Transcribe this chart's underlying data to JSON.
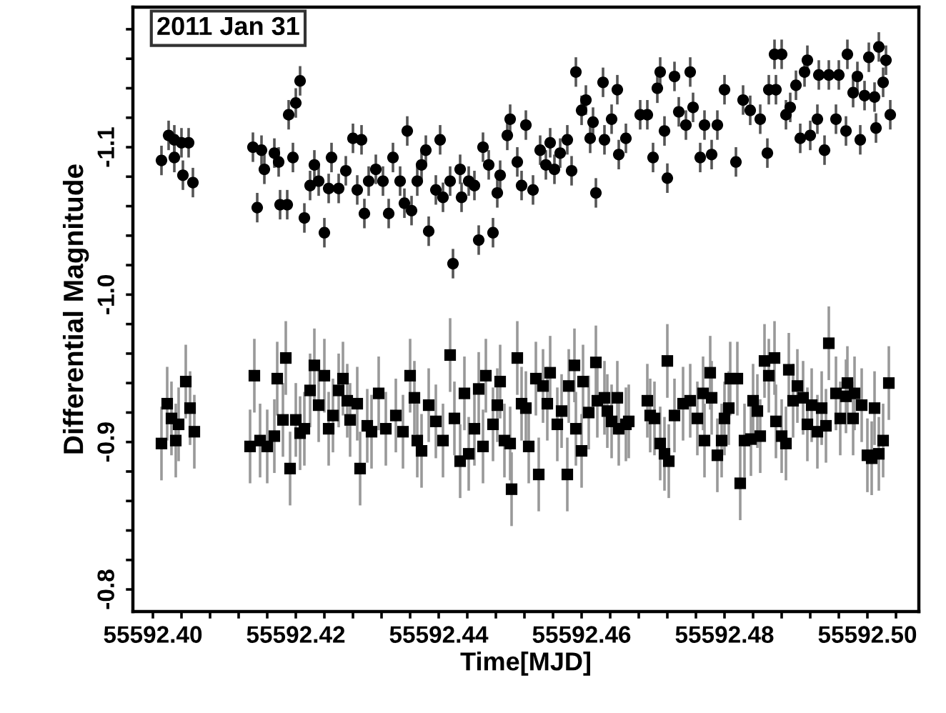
{
  "chart_data": {
    "type": "scatter",
    "xlabel": "Time[MJD]",
    "ylabel": "Differential Magnitude",
    "annotations": [
      "2011 Jan 31"
    ],
    "xlim": [
      55592.3972,
      55592.5072
    ],
    "ylim": [
      -0.785,
      -1.195
    ],
    "xticks": [
      {
        "value": 55592.4,
        "label": "55592.40"
      },
      {
        "value": 55592.404,
        "label": null
      },
      {
        "value": 55592.408,
        "label": null
      },
      {
        "value": 55592.412,
        "label": null
      },
      {
        "value": 55592.416,
        "label": null
      },
      {
        "value": 55592.42,
        "label": "55592.42"
      },
      {
        "value": 55592.424,
        "label": null
      },
      {
        "value": 55592.428,
        "label": null
      },
      {
        "value": 55592.432,
        "label": null
      },
      {
        "value": 55592.436,
        "label": null
      },
      {
        "value": 55592.44,
        "label": "55592.44"
      },
      {
        "value": 55592.444,
        "label": null
      },
      {
        "value": 55592.448,
        "label": null
      },
      {
        "value": 55592.452,
        "label": null
      },
      {
        "value": 55592.456,
        "label": null
      },
      {
        "value": 55592.46,
        "label": "55592.46"
      },
      {
        "value": 55592.464,
        "label": null
      },
      {
        "value": 55592.468,
        "label": null
      },
      {
        "value": 55592.472,
        "label": null
      },
      {
        "value": 55592.476,
        "label": null
      },
      {
        "value": 55592.48,
        "label": "55592.48"
      },
      {
        "value": 55592.484,
        "label": null
      },
      {
        "value": 55592.488,
        "label": null
      },
      {
        "value": 55592.492,
        "label": null
      },
      {
        "value": 55592.496,
        "label": null
      },
      {
        "value": 55592.5,
        "label": "55592.50"
      },
      {
        "value": 55592.504,
        "label": null
      }
    ],
    "yticks": [
      {
        "value": -1.18,
        "label": null
      },
      {
        "value": -1.16,
        "label": null
      },
      {
        "value": -1.14,
        "label": null
      },
      {
        "value": -1.12,
        "label": null
      },
      {
        "value": -1.1,
        "label": "-1.1"
      },
      {
        "value": -1.08,
        "label": null
      },
      {
        "value": -1.06,
        "label": null
      },
      {
        "value": -1.04,
        "label": null
      },
      {
        "value": -1.02,
        "label": null
      },
      {
        "value": -1.0,
        "label": "-1.0"
      },
      {
        "value": -0.98,
        "label": null
      },
      {
        "value": -0.96,
        "label": null
      },
      {
        "value": -0.94,
        "label": null
      },
      {
        "value": -0.92,
        "label": null
      },
      {
        "value": -0.9,
        "label": "-0.9"
      },
      {
        "value": -0.88,
        "label": null
      },
      {
        "value": -0.86,
        "label": null
      },
      {
        "value": -0.84,
        "label": null
      },
      {
        "value": -0.82,
        "label": null
      },
      {
        "value": -0.8,
        "label": "-0.8"
      }
    ],
    "grid": false,
    "series": [
      {
        "color": "#000000",
        "marker": "circle",
        "x": [
          55592.4012,
          55592.4022,
          55592.403,
          55592.404,
          55592.405,
          55592.4042,
          55592.4056,
          55592.403,
          55592.414,
          55592.4146,
          55592.4152,
          55592.4156,
          55592.417,
          55592.4176,
          55592.4178,
          55592.4188,
          55592.419,
          55592.42,
          55592.4206,
          55592.4196,
          55592.4212,
          55592.422,
          55592.4226,
          55592.4232,
          55592.424,
          55592.4246,
          55592.425,
          55592.426,
          55592.427,
          55592.428,
          55592.4292,
          55592.4286,
          55592.4296,
          55592.4302,
          55592.4312,
          55592.4322,
          55592.433,
          55592.4336,
          55592.4346,
          55592.4352,
          55592.4356,
          55592.4362,
          55592.437,
          55592.4376,
          55592.4382,
          55592.4386,
          55592.4396,
          55592.4402,
          55592.4406,
          55592.4416,
          55592.442,
          55592.443,
          55592.4432,
          55592.4442,
          55592.445,
          55592.4456,
          55592.4462,
          55592.447,
          55592.4476,
          55592.4482,
          55592.4486,
          55592.4496,
          55592.45,
          55592.451,
          55592.4516,
          55592.4522,
          55592.4532,
          55592.4542,
          55592.455,
          55592.4556,
          55592.4562,
          55592.457,
          55592.458,
          55592.4586,
          55592.4592,
          55592.46,
          55592.4606,
          55592.4612,
          55592.4616,
          55592.462,
          55592.463,
          55592.4632,
          55592.4642,
          55592.465,
          55592.4652,
          55592.4662,
          55592.4682,
          55592.4692,
          55592.47,
          55592.4706,
          55592.471,
          55592.4716,
          55592.472,
          55592.473,
          55592.4736,
          55592.4746,
          55592.4752,
          55592.4756,
          55592.4766,
          55592.4772,
          55592.4782,
          55592.479,
          55592.48,
          55592.4816,
          55592.4826,
          55592.4836,
          55592.485,
          55592.486,
          55592.4862,
          55592.4872,
          55592.487,
          55592.488,
          55592.4886,
          55592.4892,
          55592.49,
          55592.4906,
          55592.4912,
          55592.4916,
          55592.492,
          55592.493,
          55592.4932,
          55592.494,
          55592.4946,
          55592.4956,
          55592.496,
          55592.497,
          55592.4972,
          55592.498,
          55592.4986,
          55592.499,
          55592.4996,
          55592.5002,
          55592.501,
          55592.5012,
          55592.5016,
          55592.5022,
          55592.5026,
          55592.5032
        ],
        "values": [
          -1.091,
          -1.108,
          -1.105,
          -1.103,
          -1.103,
          -1.081,
          -1.076,
          -1.093,
          -1.1,
          -1.059,
          -1.098,
          -1.085,
          -1.096,
          -1.09,
          -1.061,
          -1.061,
          -1.122,
          -1.13,
          -1.145,
          -1.093,
          -1.052,
          -1.074,
          -1.088,
          -1.077,
          -1.042,
          -1.072,
          -1.093,
          -1.072,
          -1.084,
          -1.106,
          -1.105,
          -1.071,
          -1.055,
          -1.077,
          -1.085,
          -1.077,
          -1.055,
          -1.093,
          -1.077,
          -1.062,
          -1.111,
          -1.057,
          -1.077,
          -1.088,
          -1.098,
          -1.043,
          -1.071,
          -1.105,
          -1.066,
          -1.077,
          -1.021,
          -1.085,
          -1.066,
          -1.077,
          -1.074,
          -1.037,
          -1.1,
          -1.088,
          -1.042,
          -1.069,
          -1.081,
          -1.108,
          -1.119,
          -1.09,
          -1.074,
          -1.115,
          -1.071,
          -1.098,
          -1.088,
          -1.103,
          -1.085,
          -1.096,
          -1.105,
          -1.084,
          -1.151,
          -1.125,
          -1.132,
          -1.106,
          -1.117,
          -1.069,
          -1.144,
          -1.105,
          -1.119,
          -1.139,
          -1.095,
          -1.106,
          -1.122,
          -1.122,
          -1.093,
          -1.14,
          -1.151,
          -1.111,
          -1.079,
          -1.148,
          -1.124,
          -1.115,
          -1.151,
          -1.127,
          -1.093,
          -1.115,
          -1.095,
          -1.115,
          -1.139,
          -1.09,
          -1.132,
          -1.125,
          -1.119,
          -1.096,
          -1.139,
          -1.139,
          -1.163,
          -1.163,
          -1.122,
          -1.127,
          -1.142,
          -1.106,
          -1.151,
          -1.159,
          -1.108,
          -1.119,
          -1.149,
          -1.098,
          -1.149,
          -1.119,
          -1.149,
          -1.111,
          -1.163,
          -1.137,
          -1.148,
          -1.105,
          -1.135,
          -1.161,
          -1.134,
          -1.113,
          -1.168,
          -1.144,
          -1.159,
          -1.122
        ],
        "errors": [
          0.01,
          0.01,
          0.01,
          0.01,
          0.01,
          0.01,
          0.01,
          0.01,
          0.01,
          0.01,
          0.01,
          0.01,
          0.01,
          0.01,
          0.01,
          0.01,
          0.01,
          0.01,
          0.01,
          0.01,
          0.01,
          0.01,
          0.01,
          0.01,
          0.01,
          0.01,
          0.01,
          0.01,
          0.01,
          0.01,
          0.01,
          0.01,
          0.01,
          0.01,
          0.01,
          0.01,
          0.01,
          0.01,
          0.01,
          0.01,
          0.01,
          0.01,
          0.01,
          0.01,
          0.01,
          0.01,
          0.01,
          0.01,
          0.01,
          0.01,
          0.01,
          0.01,
          0.01,
          0.01,
          0.01,
          0.01,
          0.01,
          0.01,
          0.01,
          0.01,
          0.01,
          0.01,
          0.01,
          0.01,
          0.01,
          0.01,
          0.01,
          0.01,
          0.01,
          0.01,
          0.01,
          0.01,
          0.01,
          0.01,
          0.01,
          0.01,
          0.01,
          0.01,
          0.01,
          0.01,
          0.01,
          0.01,
          0.01,
          0.01,
          0.01,
          0.01,
          0.01,
          0.01,
          0.01,
          0.01,
          0.01,
          0.01,
          0.01,
          0.01,
          0.01,
          0.01,
          0.01,
          0.01,
          0.01,
          0.01,
          0.01,
          0.01,
          0.01,
          0.01,
          0.01,
          0.01,
          0.01,
          0.01,
          0.01,
          0.01,
          0.01,
          0.01,
          0.01,
          0.01,
          0.01,
          0.01,
          0.01,
          0.01,
          0.01,
          0.01,
          0.01,
          0.01,
          0.01,
          0.01,
          0.01,
          0.01,
          0.01,
          0.01,
          0.01,
          0.01,
          0.01,
          0.01,
          0.01,
          0.01,
          0.01,
          0.01,
          0.01,
          0.01
        ]
      },
      {
        "color": "#000000",
        "marker": "square",
        "x": [
          55592.4012,
          55592.402,
          55592.4026,
          55592.4032,
          55592.4036,
          55592.4046,
          55592.4052,
          55592.4058,
          55592.4136,
          55592.4142,
          55592.415,
          55592.416,
          55592.417,
          55592.4174,
          55592.4182,
          55592.4186,
          55592.4192,
          55592.42,
          55592.4206,
          55592.4212,
          55592.422,
          55592.4226,
          55592.4232,
          55592.424,
          55592.4246,
          55592.4252,
          55592.426,
          55592.4266,
          55592.4272,
          55592.4276,
          55592.4286,
          55592.429,
          55592.43,
          55592.4306,
          55592.4316,
          55592.4326,
          55592.434,
          55592.435,
          55592.436,
          55592.4366,
          55592.437,
          55592.4376,
          55592.4386,
          55592.4396,
          55592.4406,
          55592.4416,
          55592.4422,
          55592.443,
          55592.4436,
          55592.4442,
          55592.445,
          55592.4456,
          55592.4462,
          55592.4466,
          55592.4476,
          55592.4482,
          55592.4486,
          55592.4492,
          55592.45,
          55592.4502,
          55592.451,
          55592.4516,
          55592.4522,
          55592.4526,
          55592.4536,
          55592.454,
          55592.4546,
          55592.4552,
          55592.4556,
          55592.4566,
          55592.4572,
          55592.458,
          55592.4582,
          55592.459,
          55592.4592,
          55592.46,
          55592.4602,
          55592.461,
          55592.462,
          55592.4622,
          55592.4632,
          55592.4636,
          55592.4642,
          55592.465,
          55592.4652,
          55592.4662,
          55592.4666,
          55592.4692,
          55592.4696,
          55592.4702,
          55592.471,
          55592.4716,
          55592.4722,
          55592.472,
          55592.473,
          55592.4742,
          55592.4752,
          55592.4762,
          55592.477,
          55592.4772,
          55592.478,
          55592.4782,
          55592.479,
          55592.4796,
          55592.48,
          55592.4806,
          55592.4808,
          55592.4818,
          55592.4822,
          55592.4828,
          55592.4837,
          55592.484,
          55592.4846,
          55592.485,
          55592.4856,
          55592.4862,
          55592.487,
          55592.4872,
          55592.488,
          55592.4886,
          55592.489,
          55592.4896,
          55592.4902,
          55592.491,
          55592.4916,
          55592.4922,
          55592.493,
          55592.4936,
          55592.4942,
          55592.4946,
          55592.4956,
          55592.4962,
          55592.497,
          55592.4972,
          55592.498,
          55592.4982,
          55592.4992,
          55592.5,
          55592.5006,
          55592.501,
          55592.5016,
          55592.5022,
          55592.503
        ],
        "values": [
          -0.899,
          -0.926,
          -0.916,
          -0.901,
          -0.912,
          -0.941,
          -0.923,
          -0.907,
          -0.897,
          -0.945,
          -0.901,
          -0.897,
          -0.904,
          -0.943,
          -0.915,
          -0.957,
          -0.882,
          -0.915,
          -0.906,
          -0.909,
          -0.935,
          -0.952,
          -0.925,
          -0.945,
          -0.909,
          -0.918,
          -0.935,
          -0.943,
          -0.928,
          -0.915,
          -0.926,
          -0.882,
          -0.911,
          -0.907,
          -0.933,
          -0.909,
          -0.918,
          -0.907,
          -0.945,
          -0.93,
          -0.901,
          -0.894,
          -0.925,
          -0.914,
          -0.901,
          -0.959,
          -0.916,
          -0.887,
          -0.933,
          -0.892,
          -0.909,
          -0.936,
          -0.897,
          -0.945,
          -0.912,
          -0.925,
          -0.941,
          -0.901,
          -0.899,
          -0.868,
          -0.957,
          -0.926,
          -0.923,
          -0.897,
          -0.943,
          -0.878,
          -0.938,
          -0.926,
          -0.947,
          -0.912,
          -0.921,
          -0.878,
          -0.938,
          -0.952,
          -0.909,
          -0.894,
          -0.941,
          -0.92,
          -0.954,
          -0.928,
          -0.93,
          -0.921,
          -0.914,
          -0.93,
          -0.909,
          -0.912,
          -0.914,
          -0.928,
          -0.918,
          -0.916,
          -0.899,
          -0.892,
          -0.887,
          -0.955,
          -0.918,
          -0.926,
          -0.928,
          -0.916,
          -0.933,
          -0.901,
          -0.947,
          -0.93,
          -0.891,
          -0.901,
          -0.916,
          -0.923,
          -0.943,
          -0.943,
          -0.872,
          -0.901,
          -0.902,
          -0.928,
          -0.921,
          -0.904,
          -0.955,
          -0.945,
          -0.957,
          -0.914,
          -0.904,
          -0.899,
          -0.949,
          -0.928,
          -0.938,
          -0.93,
          -0.912,
          -0.925,
          -0.907,
          -0.923,
          -0.911,
          -0.967,
          -0.933,
          -0.916,
          -0.931,
          -0.94,
          -0.916,
          -0.933,
          -0.925,
          -0.891,
          -0.889,
          -0.923,
          -0.892,
          -0.901,
          -0.94
        ],
        "errors": [
          0.025,
          0.025,
          0.025,
          0.025,
          0.025,
          0.025,
          0.025,
          0.025,
          0.025,
          0.025,
          0.025,
          0.025,
          0.025,
          0.025,
          0.025,
          0.025,
          0.025,
          0.025,
          0.025,
          0.025,
          0.025,
          0.025,
          0.025,
          0.025,
          0.025,
          0.025,
          0.025,
          0.025,
          0.025,
          0.025,
          0.025,
          0.025,
          0.025,
          0.025,
          0.025,
          0.025,
          0.025,
          0.025,
          0.025,
          0.025,
          0.025,
          0.025,
          0.025,
          0.025,
          0.025,
          0.025,
          0.025,
          0.025,
          0.025,
          0.025,
          0.025,
          0.025,
          0.025,
          0.025,
          0.025,
          0.025,
          0.025,
          0.025,
          0.025,
          0.025,
          0.025,
          0.025,
          0.025,
          0.025,
          0.025,
          0.025,
          0.025,
          0.025,
          0.025,
          0.025,
          0.025,
          0.025,
          0.025,
          0.025,
          0.025,
          0.025,
          0.025,
          0.025,
          0.025,
          0.025,
          0.025,
          0.025,
          0.025,
          0.025,
          0.025,
          0.025,
          0.025,
          0.025,
          0.025,
          0.025,
          0.025,
          0.025,
          0.025,
          0.025,
          0.025,
          0.025,
          0.025,
          0.025,
          0.025,
          0.025,
          0.025,
          0.025,
          0.025,
          0.025,
          0.025,
          0.025,
          0.025,
          0.025,
          0.025,
          0.025,
          0.025,
          0.025,
          0.025,
          0.025,
          0.025,
          0.025,
          0.025,
          0.025,
          0.025,
          0.025,
          0.025,
          0.025,
          0.025,
          0.025,
          0.025,
          0.025,
          0.025,
          0.025,
          0.025,
          0.025,
          0.025,
          0.025,
          0.025,
          0.025,
          0.025,
          0.025,
          0.025,
          0.025,
          0.025,
          0.025,
          0.025,
          0.025,
          0.025
        ]
      }
    ]
  }
}
